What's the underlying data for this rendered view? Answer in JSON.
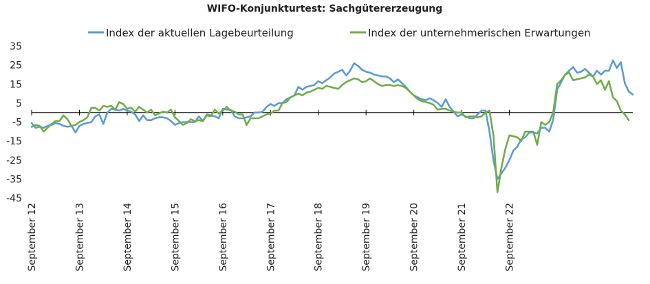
{
  "chart_data": {
    "type": "line",
    "title": "WIFO-Konjunkturtest:  Sachgütererzeugung",
    "xlabel": "",
    "ylabel": "",
    "ylim": [
      -45,
      35
    ],
    "y_ticks": [
      35,
      25,
      15,
      5,
      -5,
      -15,
      -25,
      -35,
      -45
    ],
    "x_ticks": [
      "September 12",
      "September 13",
      "September 14",
      "September 15",
      "September 16",
      "September 17",
      "September 18",
      "September 19",
      "September 20",
      "September 21",
      "September 22"
    ],
    "grid": false,
    "legend_position": "top-center",
    "colors": {
      "lage": "#5b9bd5",
      "erwartungen": "#70ad47",
      "zero_line": "#000000"
    },
    "series": [
      {
        "name": "Index der aktuellen Lagebeurteilung",
        "color": "#5b9bd5",
        "values": [
          -5.5,
          -8,
          -7.5,
          -8,
          -7,
          -6.5,
          -5.5,
          -6,
          -7,
          -7.5,
          -7,
          -10.5,
          -7,
          -6,
          -5.5,
          -5,
          -2,
          -1,
          -6,
          0,
          2,
          1.5,
          1,
          2,
          1,
          0.5,
          -1,
          -4.5,
          -1.5,
          -4,
          -4,
          -3,
          -2.5,
          -2.5,
          -3,
          -4.5,
          -6.5,
          -5.5,
          -5,
          -5,
          -5,
          -5,
          -2,
          -4.5,
          -1,
          -1.5,
          -2,
          -3,
          2,
          1.5,
          1.5,
          -2,
          -3,
          -3,
          -2.5,
          -2,
          0,
          0,
          0.5,
          3,
          4.5,
          3.5,
          5,
          5,
          7,
          8,
          9,
          13.5,
          12,
          13.5,
          14,
          14.5,
          16.5,
          15.5,
          17,
          18.5,
          20.5,
          21.5,
          22.5,
          19.5,
          22,
          26,
          24.5,
          22.5,
          21.5,
          21,
          20,
          19.5,
          19,
          19,
          18,
          16,
          17.5,
          15.5,
          13.5,
          11,
          9,
          8,
          7,
          6.5,
          7.5,
          6.5,
          5,
          3,
          7,
          3,
          0.5,
          -2,
          -1,
          -2,
          -3,
          -3,
          -1,
          1,
          1,
          -10,
          -25,
          -35,
          -32,
          -29,
          -25,
          -20,
          -18,
          -14,
          -13,
          -10.5,
          -10.5,
          -11,
          -8,
          -8,
          -10,
          -4,
          12,
          16,
          20,
          22,
          24,
          21,
          21.5,
          23,
          21,
          19,
          22,
          20,
          22,
          22,
          27.5,
          23.5,
          26.5,
          15.5,
          11,
          9.5
        ]
      },
      {
        "name": "Index der unternehmerischen Erwartungen",
        "color": "#70ad47",
        "values": [
          -7.5,
          -6.5,
          -7,
          -10,
          -8,
          -6,
          -4.5,
          -4.5,
          -1.5,
          -3.5,
          -7,
          -6.5,
          -5,
          -4,
          -2.5,
          2.5,
          2.5,
          1,
          3.5,
          3,
          3.5,
          1.5,
          5.5,
          4.5,
          2,
          2.5,
          0.5,
          3,
          1.5,
          0,
          1.5,
          -1.5,
          -0.5,
          0.5,
          0,
          1.5,
          -2.5,
          -4.5,
          -6.5,
          -5.5,
          -3.5,
          -4.5,
          -4,
          -4.5,
          -1.5,
          -2,
          1.5,
          -0.5,
          1,
          3,
          1,
          0.5,
          -1,
          -1,
          -6.5,
          -3,
          -3,
          -3,
          -2,
          -1,
          -0.5,
          1,
          1,
          5,
          5.5,
          8,
          9,
          10,
          9,
          10.5,
          11,
          12,
          13,
          12.5,
          14,
          13.5,
          13,
          12.5,
          14.5,
          16,
          17,
          18,
          17.5,
          16,
          16.5,
          18,
          16.5,
          15,
          14,
          14.5,
          14.5,
          14,
          14.5,
          14,
          13,
          11,
          9,
          7,
          6,
          5.5,
          5,
          4,
          1.5,
          2,
          2,
          1,
          0.5,
          0,
          0,
          -2.5,
          -2,
          -2,
          -2.5,
          -2,
          0,
          1,
          -12,
          -42,
          -29,
          -19,
          -12,
          -12.5,
          -13,
          -15,
          -10,
          -10,
          -10,
          -17,
          -5,
          -6.5,
          -5,
          0,
          15,
          17,
          20,
          21,
          17,
          17.5,
          18,
          18.5,
          20,
          19,
          15,
          17,
          12,
          16.5,
          8,
          6,
          1,
          -1,
          -4
        ]
      }
    ]
  }
}
